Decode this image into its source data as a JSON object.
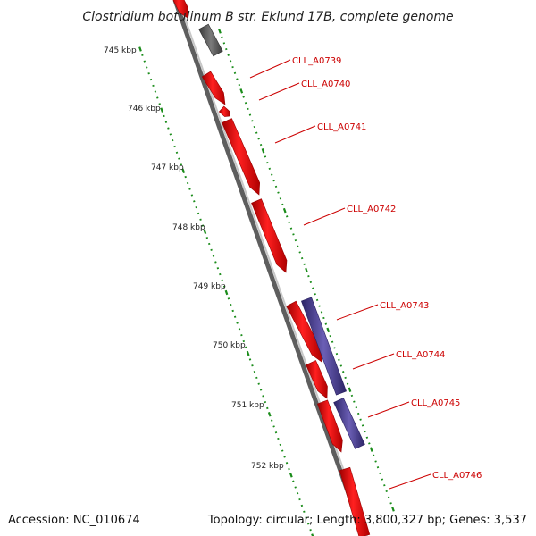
{
  "title": "Clostridium botulinum B str. Eklund 17B, complete genome",
  "footer": {
    "accession": "Accession: NC_010674",
    "topology": "Topology: circular; Length: 3,800,327 bp; Genes: 3,537"
  },
  "scale_labels": [
    "745 kbp",
    "746 kbp",
    "747 kbp",
    "748 kbp",
    "749 kbp",
    "750 kbp",
    "751 kbp",
    "752 kbp"
  ],
  "gene_labels": [
    "CLL_A0739",
    "CLL_A0740",
    "CLL_A0741",
    "CLL_A0742",
    "CLL_A0743",
    "CLL_A0744",
    "CLL_A0745",
    "CLL_A0746"
  ],
  "colors": {
    "gene_red": "#ff1414",
    "gene_dark": "#6b6b6b",
    "gene_purple": "#5a4fa0",
    "label_red": "#cc0000",
    "tick_green": "#1a8c1a",
    "backbone": "#8c8c8c"
  }
}
